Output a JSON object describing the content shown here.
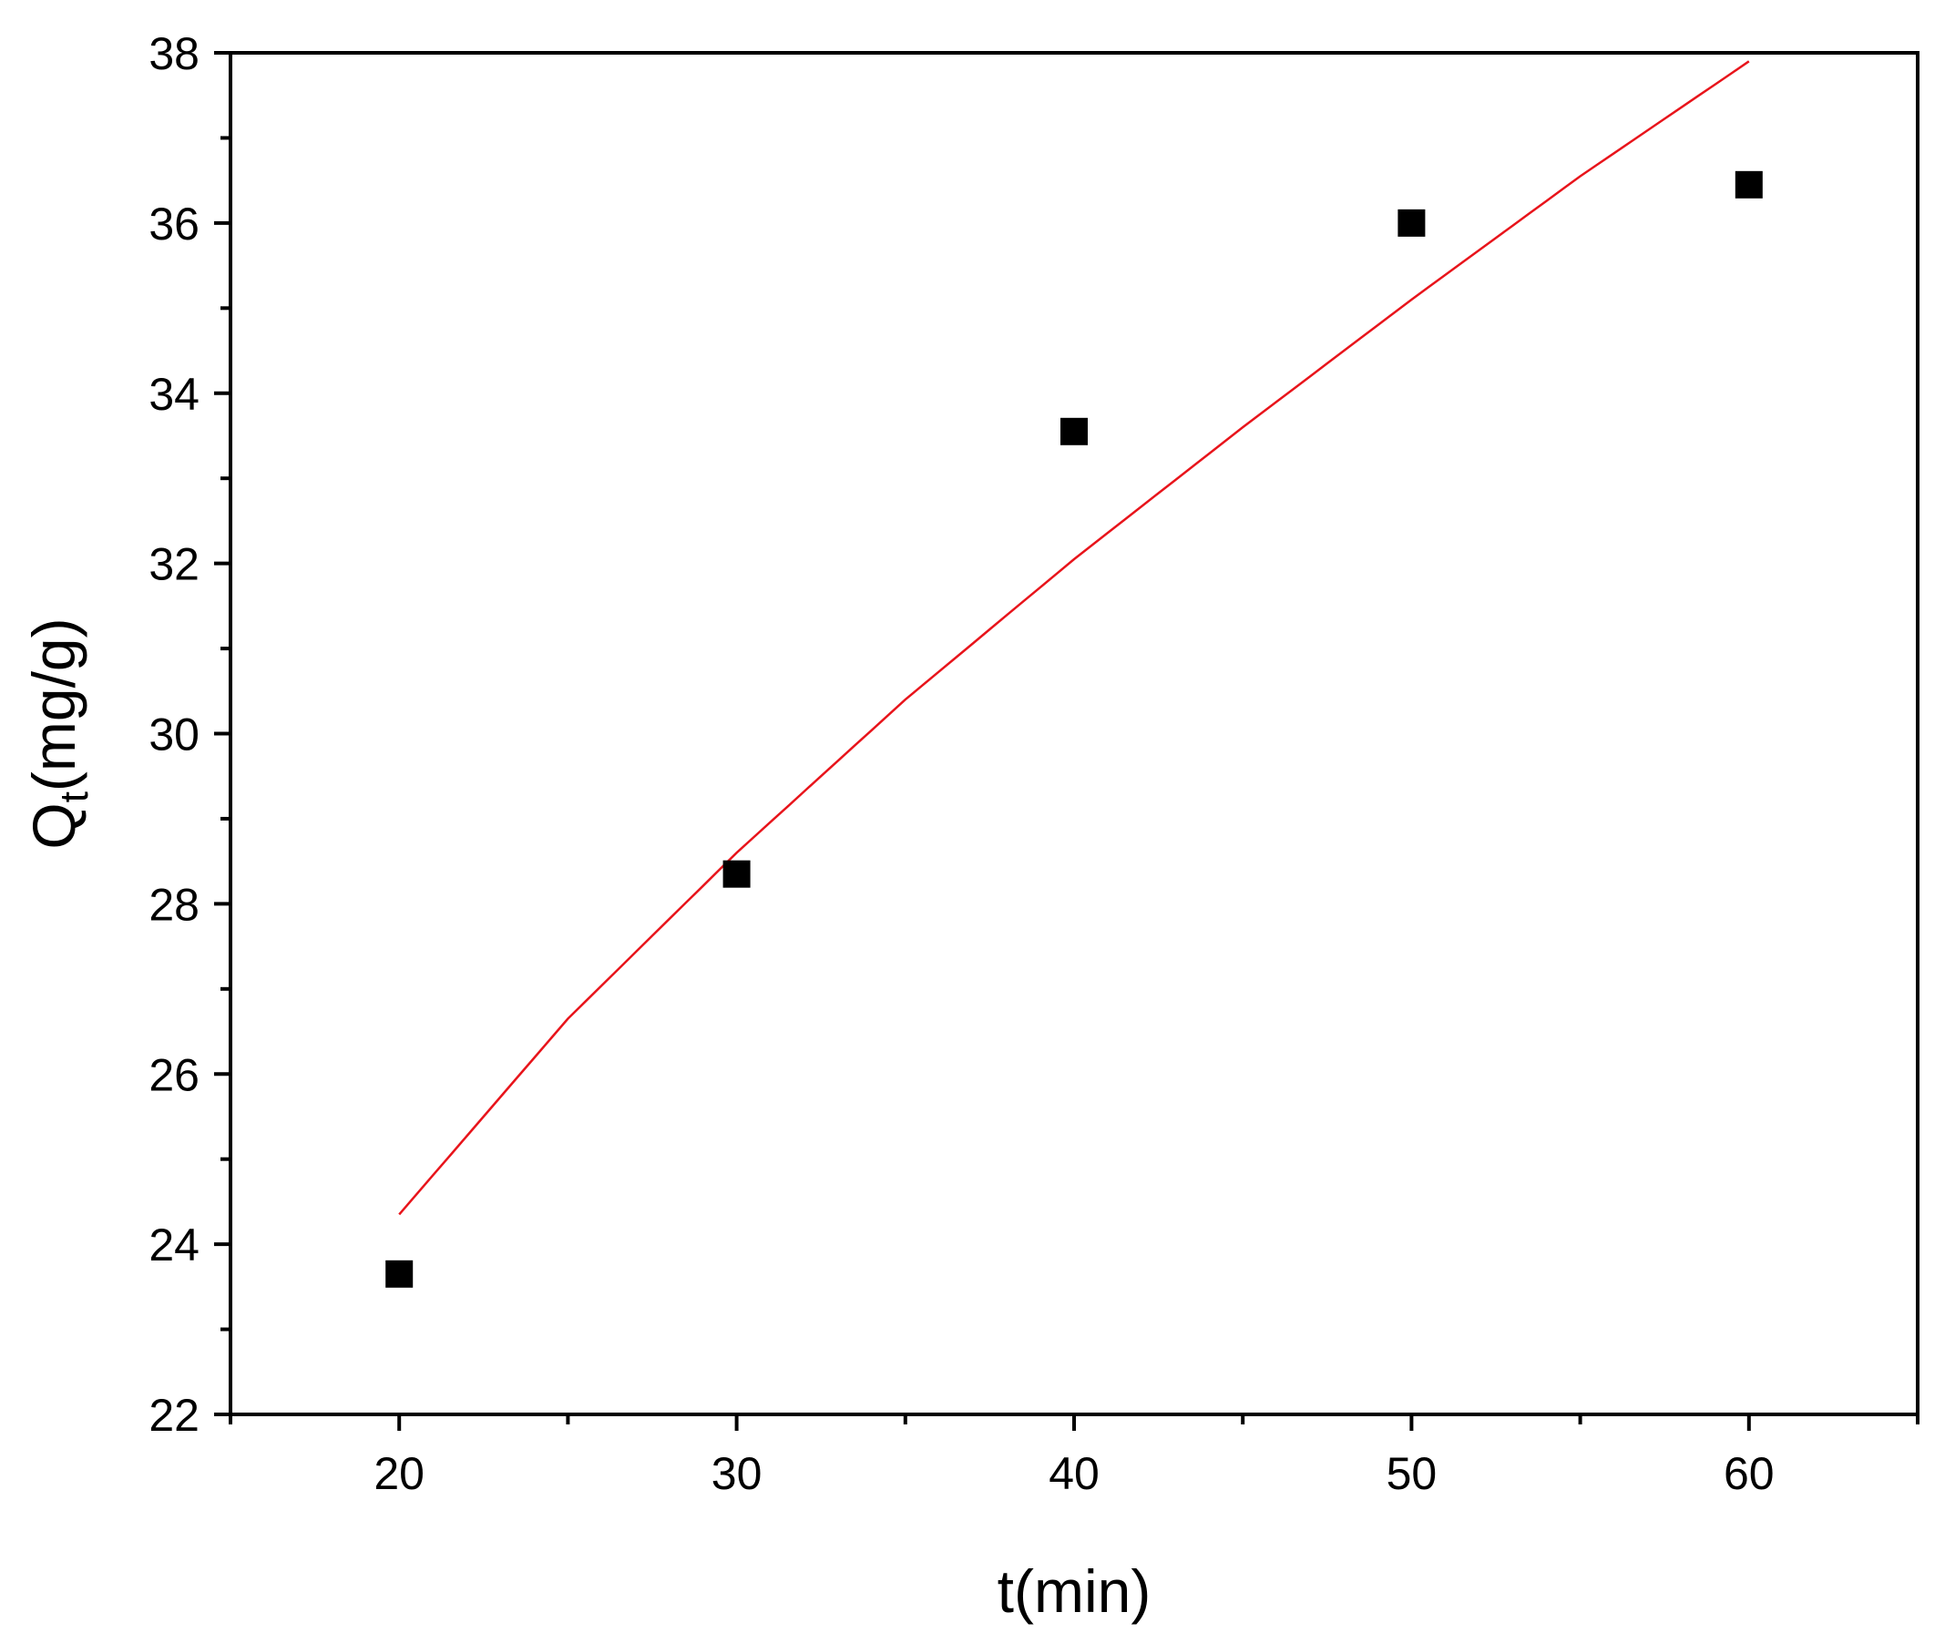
{
  "chart_data": {
    "type": "scatter",
    "xlabel": "t(min)",
    "ylabel": {
      "main": "Q",
      "subscript": "t",
      "unit": "(mg/g)"
    },
    "xlim": [
      15,
      65
    ],
    "ylim": [
      22,
      38
    ],
    "x_ticks": [
      20,
      30,
      40,
      50,
      60
    ],
    "y_ticks": [
      22,
      24,
      26,
      28,
      30,
      32,
      34,
      36,
      38
    ],
    "grid": false,
    "colors": {
      "points": "#000000",
      "fit": "#e8141b",
      "axis": "#000000"
    },
    "series": [
      {
        "type": "scatter",
        "marker": "square",
        "x": [
          20,
          30,
          40,
          50,
          60
        ],
        "y": [
          23.65,
          28.35,
          33.55,
          36.0,
          36.45
        ]
      },
      {
        "type": "line",
        "x": [
          20,
          25,
          30,
          35,
          40,
          45,
          50,
          55,
          60
        ],
        "y": [
          24.35,
          26.65,
          28.6,
          30.4,
          32.05,
          33.6,
          35.1,
          36.55,
          37.9
        ]
      }
    ]
  }
}
